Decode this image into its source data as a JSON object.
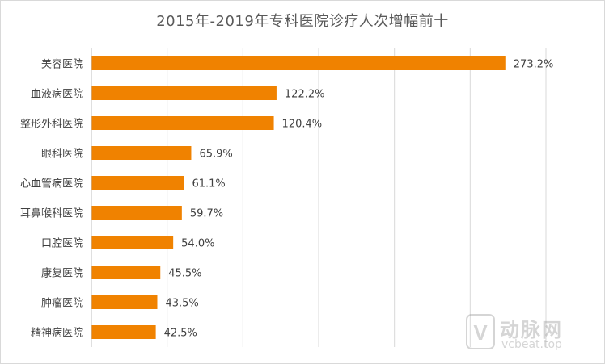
{
  "chart_data": {
    "type": "bar",
    "orientation": "horizontal",
    "title": "2015年-2019年专科医院诊疗人次增幅前十",
    "categories": [
      "美容医院",
      "血液病医院",
      "整形外科医院",
      "眼科医院",
      "心血管病医院",
      "耳鼻喉科医院",
      "口腔医院",
      "康复医院",
      "肿瘤医院",
      "精神病医院"
    ],
    "values": [
      273.2,
      122.2,
      120.4,
      65.9,
      61.1,
      59.7,
      54.0,
      45.5,
      43.5,
      42.5
    ],
    "data_labels": [
      "273.2%",
      "122.2%",
      "120.4%",
      "65.9%",
      "61.1%",
      "59.7%",
      "54.0%",
      "45.5%",
      "43.5%",
      "42.5%"
    ],
    "xlim": [
      0,
      300
    ],
    "grid": true,
    "bar_color": "#F08200",
    "grid_color": "#d9d9d9",
    "label_color": "#404040"
  },
  "watermark": {
    "logo_text": "V",
    "brand": "动脉网",
    "site": "vcbeat.top",
    "icon": "vcbeat-logo-icon"
  }
}
